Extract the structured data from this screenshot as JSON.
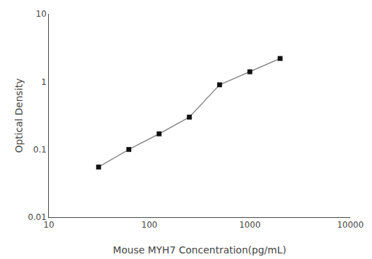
{
  "chart_data": {
    "type": "line",
    "x": [
      31.25,
      62.5,
      125,
      250,
      500,
      1000,
      2000
    ],
    "values": [
      0.055,
      0.1,
      0.17,
      0.3,
      0.9,
      1.4,
      2.2
    ],
    "xlabel": "Mouse MYH7 Concentration(pg/mL)",
    "ylabel": "Optical Density",
    "xlim": [
      10,
      10000
    ],
    "ylim": [
      0.01,
      10
    ],
    "xticks": [
      10,
      100,
      1000,
      10000
    ],
    "yticks": [
      0.01,
      0.1,
      1,
      10
    ],
    "log": true,
    "grid": false,
    "color": "#888888",
    "colors": [
      "#111111",
      "#111111",
      "#111111",
      "#111111",
      "#111111",
      "#111111",
      "#111111"
    ],
    "marker": "square",
    "line_style": "solid"
  }
}
